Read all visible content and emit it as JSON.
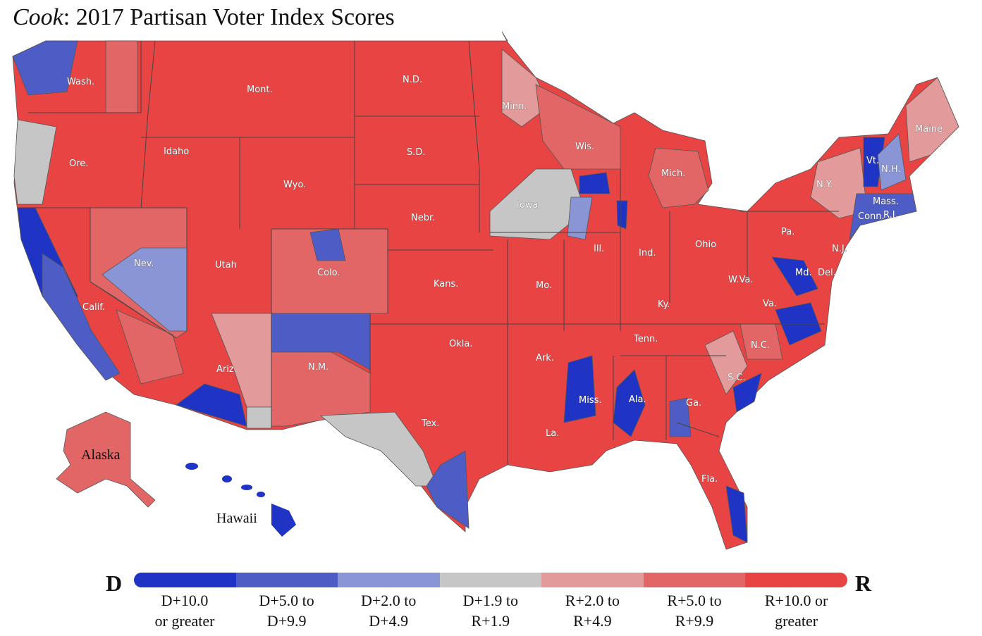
{
  "title": {
    "source": "Cook",
    "rest": ": 2017 Partisan Voter Index Scores"
  },
  "colors": {
    "d10": "#1f33c4",
    "d5": "#4e5cc6",
    "d2": "#8a95d6",
    "even": "#c6c6c6",
    "r2": "#e29a9a",
    "r5": "#e36666",
    "r10": "#e84444"
  },
  "states": [
    "Wash.",
    "Mont.",
    "N.D.",
    "Minn.",
    "Ore.",
    "Idaho",
    "S.D.",
    "Wis.",
    "Mich.",
    "Maine",
    "Vt.",
    "N.H.",
    "N.Y.",
    "Mass.",
    "Conn.",
    "R.I.",
    "Wyo.",
    "Iowa",
    "Nebr.",
    "Pa.",
    "N.J.",
    "Ohio",
    "Ind.",
    "Ill.",
    "Nev.",
    "Utah",
    "Colo.",
    "Md.",
    "Del.",
    "Kans.",
    "Mo.",
    "W.Va.",
    "Ky.",
    "Va.",
    "Calif.",
    "Tenn.",
    "N.C.",
    "Okla.",
    "Ark.",
    "Ariz.",
    "N.M.",
    "S.C.",
    "Miss.",
    "Ala.",
    "Ga.",
    "Tex.",
    "La.",
    "Fla.",
    "Alaska",
    "Hawaii"
  ],
  "legend": {
    "left": "D",
    "right": "R",
    "items": [
      {
        "line1": "D+10.0",
        "line2": "or greater"
      },
      {
        "line1": "D+5.0 to",
        "line2": "D+9.9"
      },
      {
        "line1": "D+2.0 to",
        "line2": "D+4.9"
      },
      {
        "line1": "D+1.9 to",
        "line2": "R+1.9"
      },
      {
        "line1": "R+2.0 to",
        "line2": "R+4.9"
      },
      {
        "line1": "R+5.0 to",
        "line2": "R+9.9"
      },
      {
        "line1": "R+10.0 or",
        "line2": "greater"
      }
    ]
  }
}
